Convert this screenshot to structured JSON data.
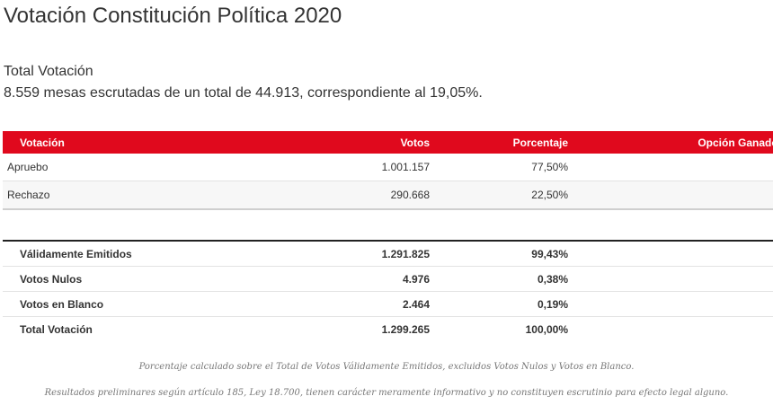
{
  "page": {
    "title": "Votación Constitución Política 2020",
    "subtitle": "Total Votación",
    "summary": "8.559 mesas escrutadas de un total de 44.913, correspondiente al 19,05%."
  },
  "results_table": {
    "headers": {
      "option": "Votación",
      "votes": "Votos",
      "percent": "Porcentaje",
      "winner": "Opción Ganadora"
    },
    "rows": [
      {
        "option": "Apruebo",
        "votes": "1.001.157",
        "percent": "77,50%",
        "winner": ""
      },
      {
        "option": "Rechazo",
        "votes": "290.668",
        "percent": "22,50%",
        "winner": ""
      }
    ]
  },
  "totals_table": {
    "rows": [
      {
        "label": "Válidamente Emitidos",
        "votes": "1.291.825",
        "percent": "99,43%"
      },
      {
        "label": "Votos Nulos",
        "votes": "4.976",
        "percent": "0,38%"
      },
      {
        "label": "Votos en Blanco",
        "votes": "2.464",
        "percent": "0,19%"
      },
      {
        "label": "Total Votación",
        "votes": "1.299.265",
        "percent": "100,00%"
      }
    ]
  },
  "notes": {
    "percentage_note": "Porcentaje calculado sobre el Total de Votos Válidamente Emitidos, excluidos Votos Nulos y Votos en Blanco.",
    "legal_note": "Resultados preliminares según artículo 185, Ley 18.700, tienen carácter meramente informativo y no constituyen escrutinio para efecto legal alguno."
  },
  "colors": {
    "header_bg": "#e0091d",
    "header_text": "#ffffff",
    "text": "#333333",
    "note_text": "#777777"
  }
}
